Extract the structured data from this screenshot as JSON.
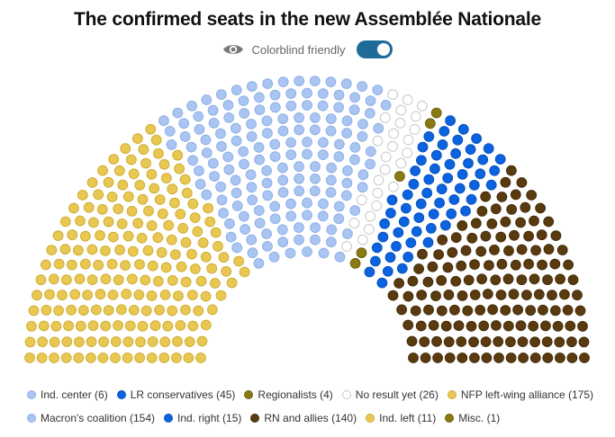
{
  "title": "The confirmed seats in the new Assemblée Nationale",
  "colorblind": {
    "label": "Colorblind friendly",
    "enabled": true,
    "icon": "eye-icon"
  },
  "chart_data": {
    "type": "parliament",
    "total_seats": 577,
    "series": [
      {
        "name": "NFP left-wing alliance",
        "label": "NFP left-wing alliance (175)",
        "value": 175,
        "color": "#e8c852",
        "border": "#cfae35"
      },
      {
        "name": "Ind. left",
        "label": "Ind. left (11)",
        "value": 11,
        "color": "#e8c852",
        "border": "#cfae35"
      },
      {
        "name": "Macron's coalition",
        "label": "Macron's coalition (154)",
        "value": 154,
        "color": "#aac5f2",
        "border": "#8fb0e6"
      },
      {
        "name": "Ind. center",
        "label": "Ind. center (6)",
        "value": 6,
        "color": "#aac5f2",
        "border": "#8fb0e6"
      },
      {
        "name": "No result yet",
        "label": "No result yet (26)",
        "value": 26,
        "color": "#ffffff",
        "border": "#c8c8c8"
      },
      {
        "name": "Regionalists",
        "label": "Regionalists (4)",
        "value": 4,
        "color": "#8a7a12",
        "border": "#6f6210"
      },
      {
        "name": "Misc.",
        "label": "Misc. (1)",
        "value": 1,
        "color": "#8a7a12",
        "border": "#6f6210"
      },
      {
        "name": "LR conservatives",
        "label": "LR conservatives (45)",
        "value": 45,
        "color": "#0b63df",
        "border": "#0a54bd"
      },
      {
        "name": "Ind. right",
        "label": "Ind. right (15)",
        "value": 15,
        "color": "#0b63df",
        "border": "#0a54bd"
      },
      {
        "name": "RN and allies",
        "label": "RN and allies (140)",
        "value": 140,
        "color": "#5a3b10",
        "border": "#452c0a"
      }
    ]
  },
  "legend": {
    "rows": [
      [
        "Ind. center",
        "LR conservatives",
        "Regionalists",
        "No result yet",
        "NFP left-wing alliance"
      ],
      [
        "Macron's coalition",
        "Ind. right",
        "RN and allies",
        "Ind. left",
        "Misc."
      ]
    ]
  }
}
